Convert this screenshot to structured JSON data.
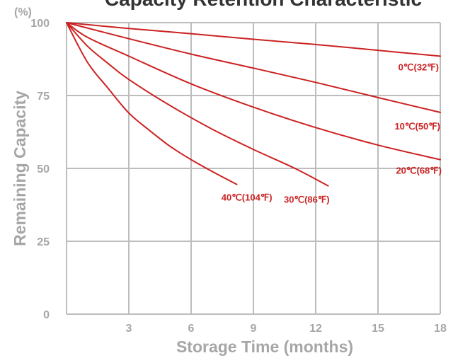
{
  "chart_data": {
    "type": "line",
    "title": "Capacity Retention Characteristic",
    "xlabel": "Storage Time (months)",
    "ylabel": "Remaining Capacity",
    "y_unit": "(%)",
    "xlim": [
      0,
      18
    ],
    "ylim": [
      0,
      100
    ],
    "x_ticks": [
      3,
      6,
      9,
      12,
      15,
      18
    ],
    "y_ticks": [
      0,
      25,
      50,
      75,
      100
    ],
    "grid": true,
    "line_color": "#cc2222",
    "label_color": "#cc2222",
    "series": [
      {
        "name": "0℃(32℉)",
        "x": [
          0,
          3,
          6,
          9,
          12,
          15,
          18
        ],
        "y": [
          100,
          98,
          96.2,
          94.3,
          92.5,
          90.5,
          88.5
        ]
      },
      {
        "name": "10℃(50℉)",
        "x": [
          0,
          3,
          6,
          9,
          12,
          15,
          18
        ],
        "y": [
          100,
          94.5,
          89.2,
          84.4,
          79.5,
          74.3,
          69.2
        ]
      },
      {
        "name": "20℃(68℉)",
        "x": [
          0,
          1,
          3,
          6,
          9,
          12,
          15,
          18
        ],
        "y": [
          100,
          95,
          88.5,
          79,
          71,
          64,
          58,
          53
        ]
      },
      {
        "name": "30℃(86℉)",
        "x": [
          0,
          1,
          2,
          3,
          5,
          7,
          9,
          11,
          12.6
        ],
        "y": [
          100,
          92,
          86,
          80.5,
          71.5,
          63.5,
          56.5,
          50,
          44
        ]
      },
      {
        "name": "40℃(104℉)",
        "x": [
          0,
          1,
          2,
          3,
          4,
          5,
          6,
          7,
          8.2
        ],
        "y": [
          100,
          86.5,
          77.5,
          69,
          63,
          57.5,
          53,
          49,
          44.5
        ]
      }
    ]
  }
}
